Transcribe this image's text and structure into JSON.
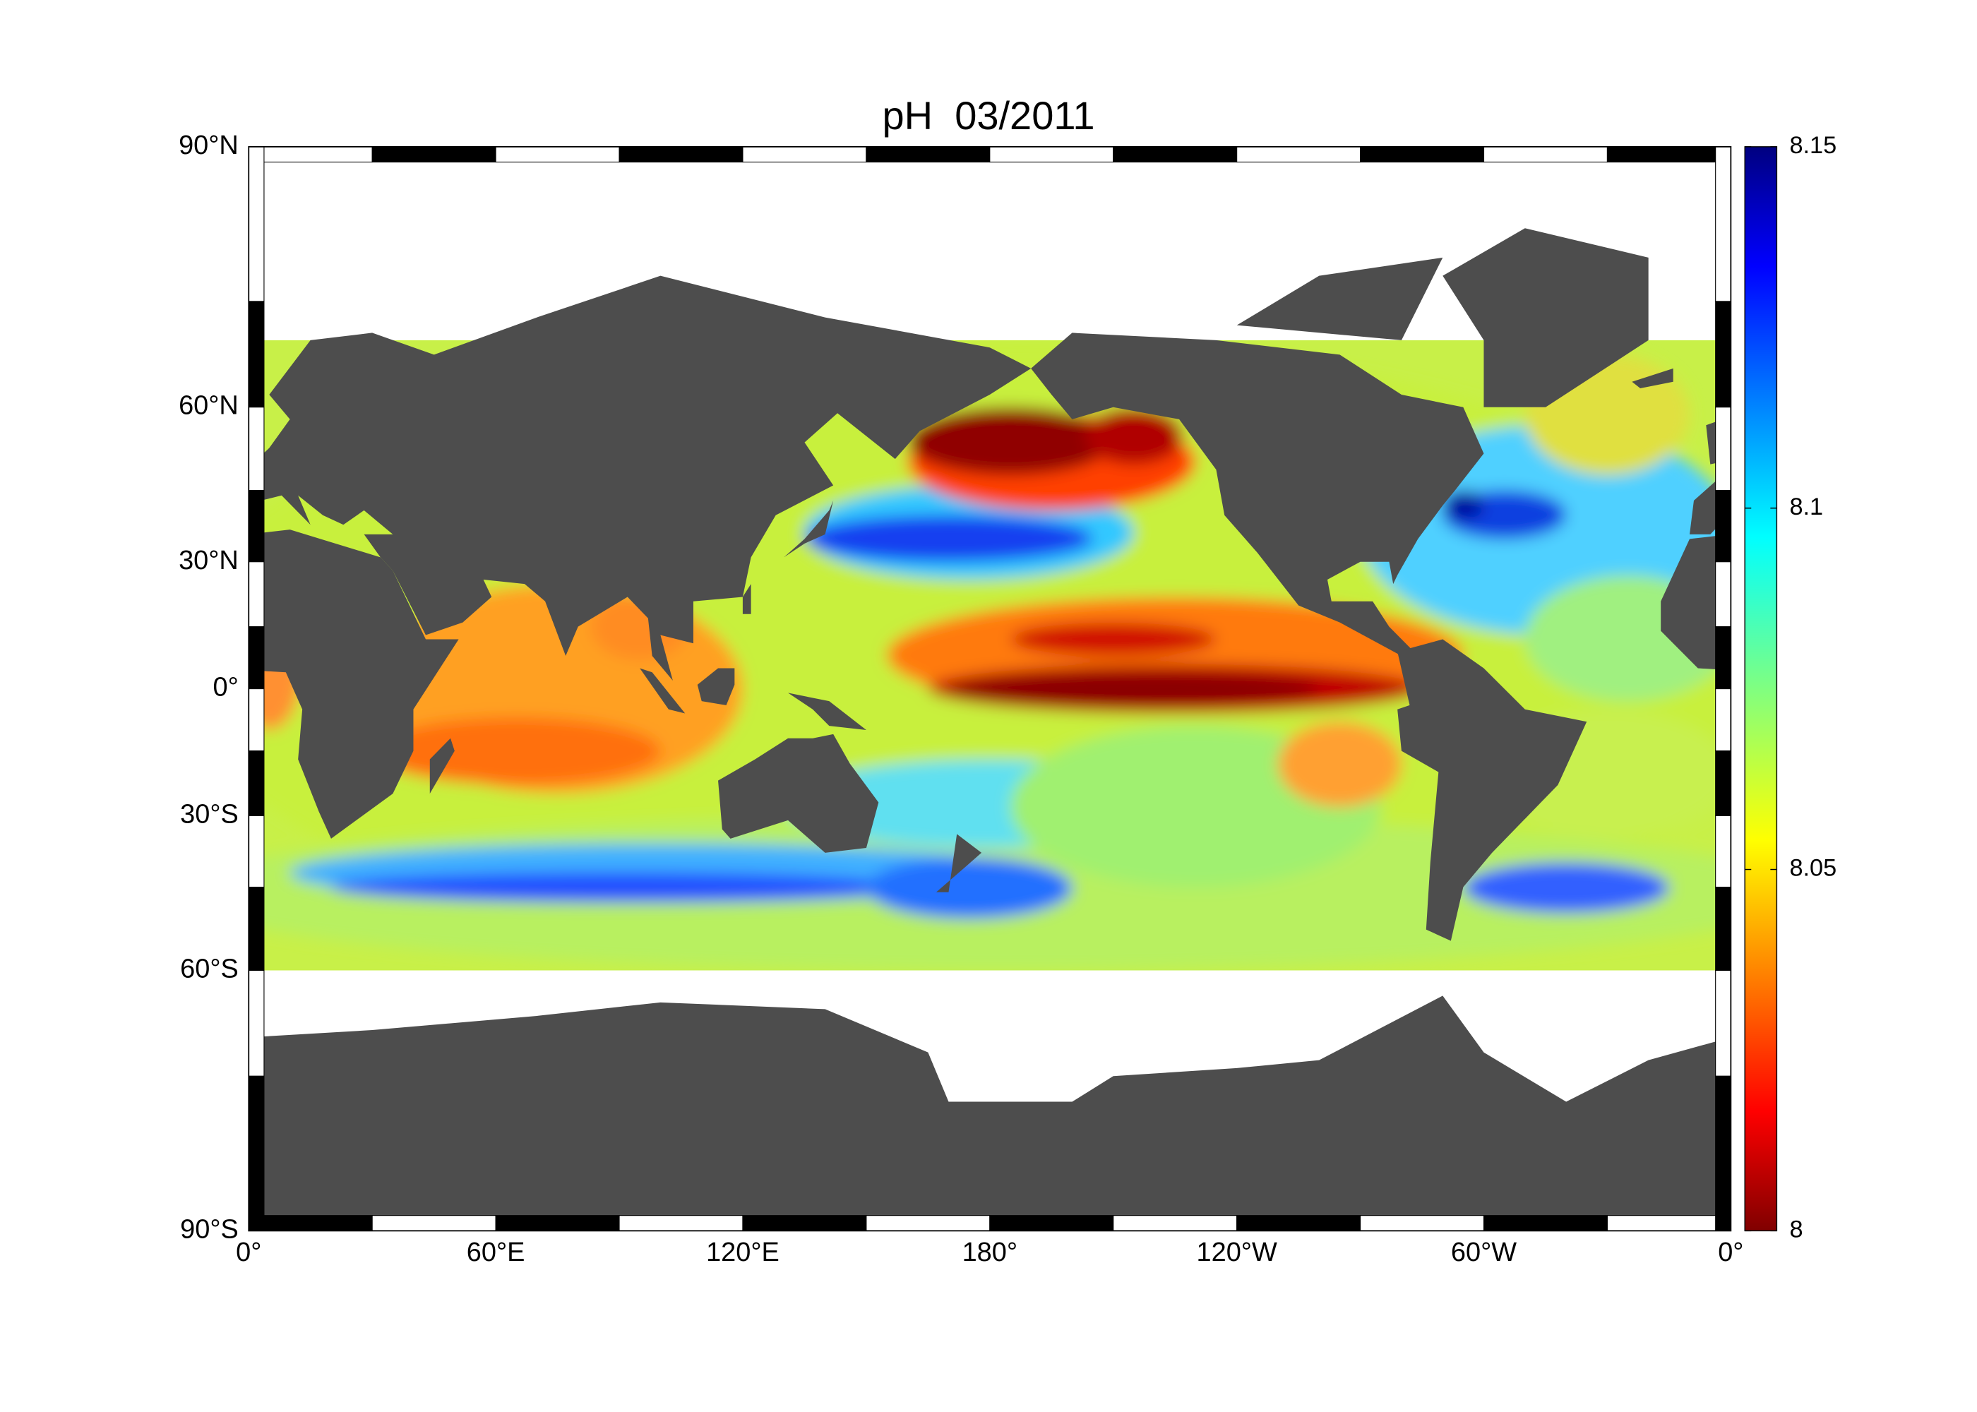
{
  "map": {
    "title": "pH  03/2011",
    "projection": "miller",
    "lon_range": [
      0,
      360
    ],
    "lat_range": [
      -90,
      90
    ],
    "lat_ticks": [
      {
        "value": 90,
        "label": "90°N"
      },
      {
        "value": 60,
        "label": "60°N"
      },
      {
        "value": 30,
        "label": "30°N"
      },
      {
        "value": 0,
        "label": "0°"
      },
      {
        "value": -30,
        "label": "30°S"
      },
      {
        "value": -60,
        "label": "60°S"
      },
      {
        "value": -90,
        "label": "90°S"
      }
    ],
    "lon_ticks": [
      {
        "value": 0,
        "label": "0°"
      },
      {
        "value": 60,
        "label": "60°E"
      },
      {
        "value": 120,
        "label": "120°E"
      },
      {
        "value": 180,
        "label": "180°"
      },
      {
        "value": 240,
        "label": "120°W"
      },
      {
        "value": 300,
        "label": "60°W"
      },
      {
        "value": 360,
        "label": "0°"
      }
    ],
    "colorbar": {
      "colormap": "jet",
      "lim": [
        8,
        8.15
      ],
      "ticks": [
        8,
        8.05,
        8.1,
        8.15
      ]
    }
  }
}
